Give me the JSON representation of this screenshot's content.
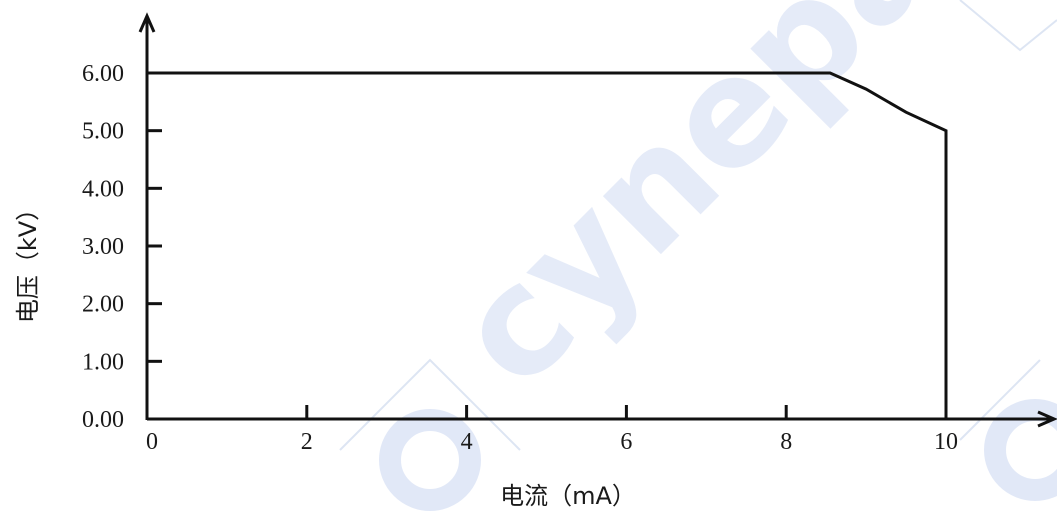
{
  "chart_data": {
    "type": "line",
    "title": "",
    "xlabel": "电流（mA）",
    "ylabel": "电压（kV）",
    "xlim": [
      0,
      10
    ],
    "ylim": [
      0,
      6
    ],
    "x_ticks": [
      0,
      2,
      4,
      6,
      8,
      10
    ],
    "x_tick_labels": [
      "0",
      "2",
      "4",
      "6",
      "8",
      "10"
    ],
    "y_ticks": [
      0,
      1,
      2,
      3,
      4,
      5,
      6
    ],
    "y_tick_labels": [
      "0.00",
      "1.00",
      "2.00",
      "3.00",
      "4.00",
      "5.00",
      "6.00"
    ],
    "grid": false,
    "legend": "none",
    "series": [
      {
        "x": [
          0,
          8.55,
          9.0,
          9.5,
          10.0,
          10.0
        ],
        "y": [
          6.0,
          6.0,
          5.72,
          5.32,
          5.0,
          0.0
        ],
        "color": "#111111"
      }
    ]
  },
  "watermark": {
    "text": "cynepaic",
    "color": "#b5c6ea",
    "opacity": 0.35
  }
}
